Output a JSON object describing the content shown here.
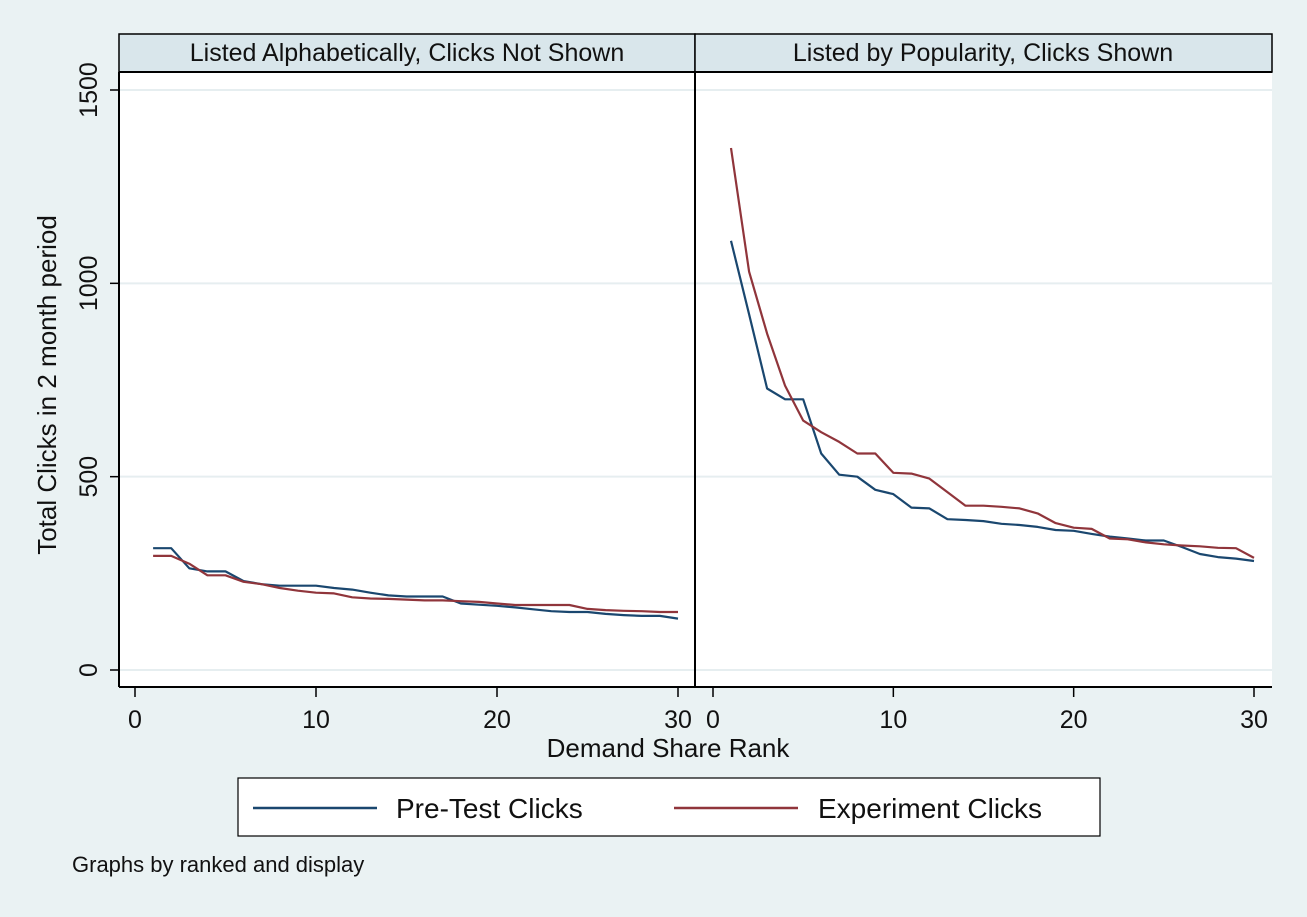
{
  "colors": {
    "background": "#eaf2f3",
    "plot_background": "#ffffff",
    "strip_background": "#d9e6eb",
    "gridline": "#e6eef0",
    "pre_test": "#1a476f",
    "experiment": "#90353b"
  },
  "chart_data": {
    "type": "line",
    "ylabel": "Total Clicks in 2 month period",
    "xlabel": "Demand Share Rank",
    "note": "Graphs by ranked and display",
    "xlim": [
      0,
      30
    ],
    "ylim": [
      0,
      1500
    ],
    "x_ticks": [
      "0",
      "10",
      "20",
      "30"
    ],
    "y_ticks": [
      "0",
      "500",
      "1000",
      "1500"
    ],
    "grid": true,
    "legend": {
      "position": "bottom",
      "entries": [
        "Pre-Test Clicks",
        "Experiment Clicks"
      ]
    },
    "panels": [
      {
        "title": "Listed Alphabetically, Clicks Not Shown",
        "x": [
          1,
          2,
          3,
          4,
          5,
          6,
          7,
          8,
          9,
          10,
          11,
          12,
          13,
          14,
          15,
          16,
          17,
          18,
          19,
          20,
          21,
          22,
          23,
          24,
          25,
          26,
          27,
          28,
          29,
          30
        ],
        "series": [
          {
            "name": "Pre-Test Clicks",
            "values": [
              315,
              315,
              263,
              255,
              255,
              230,
              222,
              218,
              218,
              218,
              212,
              208,
              200,
              193,
              190,
              190,
              190,
              172,
              169,
              166,
              162,
              157,
              152,
              150,
              150,
              145,
              142,
              140,
              140,
              133
            ]
          },
          {
            "name": "Experiment Clicks",
            "values": [
              295,
              295,
              275,
              245,
              245,
              228,
              222,
              212,
              205,
              200,
              198,
              188,
              185,
              184,
              182,
              180,
              180,
              178,
              176,
              172,
              168,
              168,
              168,
              168,
              158,
              155,
              153,
              152,
              150,
              150
            ]
          }
        ]
      },
      {
        "title": "Listed by Popularity, Clicks Shown",
        "x": [
          1,
          2,
          3,
          4,
          5,
          6,
          7,
          8,
          9,
          10,
          11,
          12,
          13,
          14,
          15,
          16,
          17,
          18,
          19,
          20,
          21,
          22,
          23,
          24,
          25,
          26,
          27,
          28,
          29,
          30
        ],
        "series": [
          {
            "name": "Pre-Test Clicks",
            "values": [
              1110,
              920,
              728,
              700,
              700,
              560,
              505,
              500,
              466,
              455,
              420,
              418,
              390,
              388,
              385,
              378,
              375,
              370,
              362,
              360,
              352,
              345,
              340,
              335,
              335,
              318,
              300,
              292,
              288,
              282
            ]
          },
          {
            "name": "Experiment Clicks",
            "values": [
              1350,
              1030,
              870,
              735,
              645,
              615,
              590,
              560,
              560,
              510,
              508,
              495,
              460,
              425,
              425,
              422,
              418,
              405,
              380,
              368,
              365,
              340,
              338,
              330,
              325,
              322,
              320,
              316,
              315,
              290
            ]
          }
        ]
      }
    ]
  }
}
